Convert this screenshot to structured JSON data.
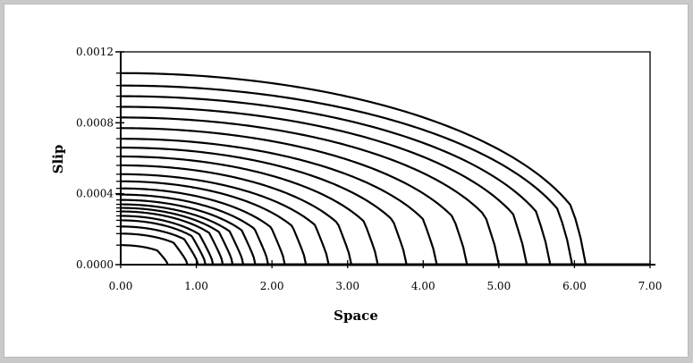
{
  "chart_data": {
    "type": "line",
    "title": "",
    "xlabel": "Space",
    "ylabel": "Slip",
    "xlim": [
      0,
      7
    ],
    "ylim": [
      0,
      0.0012
    ],
    "x_ticks": [
      "0.00",
      "1.00",
      "2.00",
      "3.00",
      "4.00",
      "5.00",
      "6.00",
      "7.00"
    ],
    "y_ticks": [
      "0.0000",
      "0.0004",
      "0.0008",
      "0.0012"
    ],
    "grid": false,
    "legend": "none",
    "line_color": "#000000",
    "curve_shape": "each curve: slip(x) = peak * sqrt(1 - (x/front)^2) until near front, then steep drop to 0; flat at 0 beyond front",
    "series": [
      {
        "peak": 0.00011,
        "front": 0.62
      },
      {
        "peak": 0.000175,
        "front": 0.88
      },
      {
        "peak": 0.000215,
        "front": 1.02
      },
      {
        "peak": 0.00025,
        "front": 1.12
      },
      {
        "peak": 0.000275,
        "front": 1.22
      },
      {
        "peak": 0.0003,
        "front": 1.35
      },
      {
        "peak": 0.00032,
        "front": 1.48
      },
      {
        "peak": 0.00034,
        "front": 1.62
      },
      {
        "peak": 0.000365,
        "front": 1.78
      },
      {
        "peak": 0.000395,
        "front": 1.95
      },
      {
        "peak": 0.00043,
        "front": 2.17
      },
      {
        "peak": 0.00047,
        "front": 2.45
      },
      {
        "peak": 0.00051,
        "front": 2.75
      },
      {
        "peak": 0.00056,
        "front": 3.05
      },
      {
        "peak": 0.00061,
        "front": 3.4
      },
      {
        "peak": 0.00066,
        "front": 3.78
      },
      {
        "peak": 0.00071,
        "front": 4.18
      },
      {
        "peak": 0.00077,
        "front": 4.58
      },
      {
        "peak": 0.00083,
        "front": 5.0
      },
      {
        "peak": 0.00089,
        "front": 5.37
      },
      {
        "peak": 0.00095,
        "front": 5.68
      },
      {
        "peak": 0.00101,
        "front": 5.97
      },
      {
        "peak": 0.00108,
        "front": 6.15
      }
    ]
  }
}
